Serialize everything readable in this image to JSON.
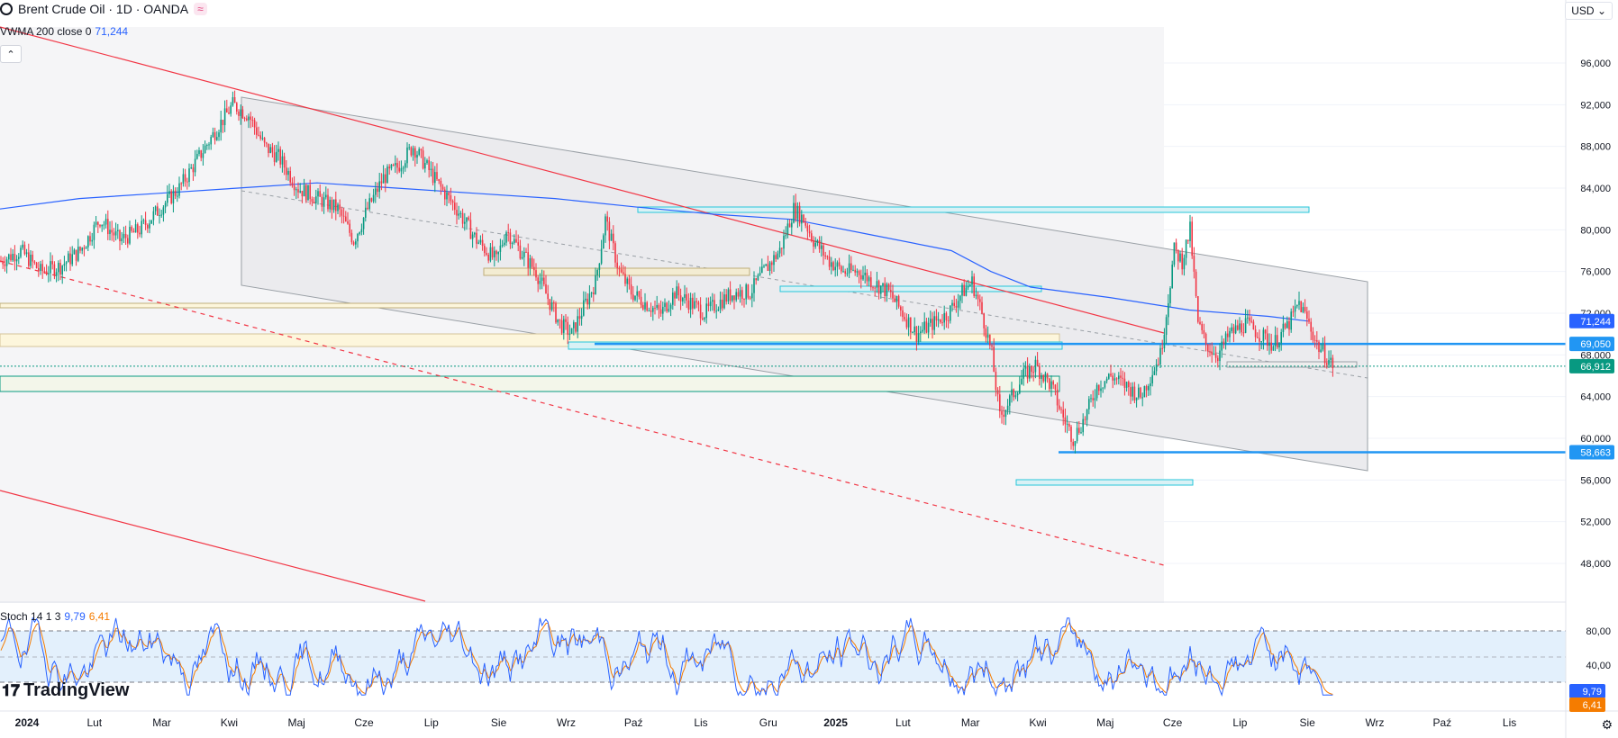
{
  "header": {
    "title": "Brent Crude Oil · 1D · OANDA",
    "currency": "USD"
  },
  "indicators": {
    "vwma_label": "VWMA 200 close 0",
    "vwma_value": "71,244",
    "stoch_label": "Stoch 14 1 3",
    "stoch_k": "9,79",
    "stoch_d": "6,41"
  },
  "price_axis": {
    "ticks": [
      "96,000",
      "92,000",
      "88,000",
      "84,000",
      "80,000",
      "76,000",
      "72,000",
      "68,000",
      "64,000",
      "60,000",
      "56,000",
      "52,000",
      "48,000"
    ],
    "labels": [
      {
        "text": "71,244",
        "value": 71.244,
        "color": "#2962ff"
      },
      {
        "text": "69,050",
        "value": 69.05,
        "color": "#2196f3"
      },
      {
        "text": "66,912",
        "value": 66.912,
        "color": "#089981"
      },
      {
        "text": "58,663",
        "value": 58.663,
        "color": "#2196f3"
      }
    ]
  },
  "stoch_axis": {
    "ticks": [
      "80,00",
      "40,00"
    ],
    "labels": [
      {
        "text": "9,79",
        "value": 9.79,
        "color": "#2962ff"
      },
      {
        "text": "6,41",
        "value": 6.41,
        "color": "#f57c00"
      }
    ]
  },
  "time_axis": {
    "labels": [
      "2024",
      "Lut",
      "Mar",
      "Kwi",
      "Maj",
      "Cze",
      "Lip",
      "Sie",
      "Wrz",
      "Paź",
      "Lis",
      "Gru",
      "2025",
      "Lut",
      "Mar",
      "Kwi",
      "Maj",
      "Cze",
      "Lip",
      "Sie",
      "Wrz",
      "Paź",
      "Lis"
    ]
  },
  "brand": "TradingView",
  "chart_data": {
    "type": "candlestick",
    "title": "Brent Crude Oil · 1D · OANDA",
    "ylim": [
      46,
      100
    ],
    "price_path": [
      [
        0,
        77
      ],
      [
        10,
        78
      ],
      [
        20,
        76
      ],
      [
        30,
        76.5
      ],
      [
        40,
        78
      ],
      [
        50,
        81
      ],
      [
        60,
        79
      ],
      [
        70,
        80
      ],
      [
        80,
        82
      ],
      [
        90,
        84
      ],
      [
        100,
        87
      ],
      [
        110,
        90
      ],
      [
        117,
        92
      ],
      [
        125,
        91
      ],
      [
        133,
        88
      ],
      [
        140,
        87
      ],
      [
        150,
        84
      ],
      [
        160,
        83
      ],
      [
        170,
        82
      ],
      [
        178,
        79
      ],
      [
        185,
        82
      ],
      [
        193,
        85
      ],
      [
        200,
        86
      ],
      [
        208,
        88
      ],
      [
        215,
        86
      ],
      [
        222,
        84
      ],
      [
        230,
        82
      ],
      [
        240,
        79
      ],
      [
        250,
        77
      ],
      [
        255,
        80
      ],
      [
        262,
        78
      ],
      [
        270,
        76
      ],
      [
        277,
        73
      ],
      [
        282,
        71
      ],
      [
        288,
        70
      ],
      [
        295,
        73
      ],
      [
        300,
        75
      ],
      [
        305,
        81
      ],
      [
        312,
        76
      ],
      [
        318,
        74
      ],
      [
        325,
        73
      ],
      [
        333,
        72
      ],
      [
        340,
        74
      ],
      [
        348,
        73
      ],
      [
        355,
        72
      ],
      [
        362,
        73
      ],
      [
        370,
        74
      ],
      [
        378,
        74
      ],
      [
        385,
        76
      ],
      [
        393,
        78
      ],
      [
        400,
        82
      ],
      [
        405,
        81
      ],
      [
        410,
        79
      ],
      [
        418,
        77
      ],
      [
        425,
        76
      ],
      [
        433,
        76
      ],
      [
        440,
        75
      ],
      [
        448,
        74
      ],
      [
        455,
        72
      ],
      [
        462,
        70
      ],
      [
        470,
        71
      ],
      [
        478,
        72
      ],
      [
        485,
        74
      ],
      [
        490,
        75
      ],
      [
        495,
        72
      ],
      [
        500,
        68
      ],
      [
        504,
        62
      ],
      [
        510,
        64
      ],
      [
        516,
        66
      ],
      [
        522,
        67
      ],
      [
        530,
        65
      ],
      [
        536,
        62
      ],
      [
        541,
        60
      ],
      [
        547,
        62
      ],
      [
        553,
        65
      ],
      [
        560,
        66
      ],
      [
        568,
        65
      ],
      [
        575,
        64
      ],
      [
        580,
        66
      ],
      [
        585,
        68
      ],
      [
        588,
        72
      ],
      [
        592,
        78
      ],
      [
        596,
        77
      ],
      [
        600,
        80
      ],
      [
        604,
        71
      ],
      [
        608,
        69
      ],
      [
        614,
        68
      ],
      [
        620,
        70
      ],
      [
        628,
        71
      ],
      [
        635,
        70
      ],
      [
        642,
        69
      ],
      [
        650,
        71
      ],
      [
        655,
        73
      ],
      [
        660,
        71
      ],
      [
        664,
        69
      ],
      [
        668,
        68
      ],
      [
        672,
        67
      ]
    ],
    "vwma_path": [
      [
        0,
        82
      ],
      [
        40,
        83
      ],
      [
        80,
        83.5
      ],
      [
        120,
        84
      ],
      [
        160,
        84.5
      ],
      [
        200,
        84
      ],
      [
        240,
        83.5
      ],
      [
        280,
        83
      ],
      [
        320,
        82.2
      ],
      [
        360,
        81.5
      ],
      [
        400,
        81
      ],
      [
        440,
        79.5
      ],
      [
        480,
        78
      ],
      [
        500,
        76
      ],
      [
        520,
        74.5
      ],
      [
        560,
        73.5
      ],
      [
        600,
        72.3
      ],
      [
        640,
        71.7
      ],
      [
        660,
        71.244
      ]
    ],
    "horizontal_levels": [
      {
        "value": 69.05,
        "color": "#2196f3"
      },
      {
        "value": 58.663,
        "color": "#2196f3"
      },
      {
        "value": 82.0,
        "color": "#26c6da"
      },
      {
        "value": 66.912,
        "color": "#089981",
        "dotted": true
      }
    ],
    "stoch_k_last": 9.79,
    "stoch_d_last": 6.41
  }
}
